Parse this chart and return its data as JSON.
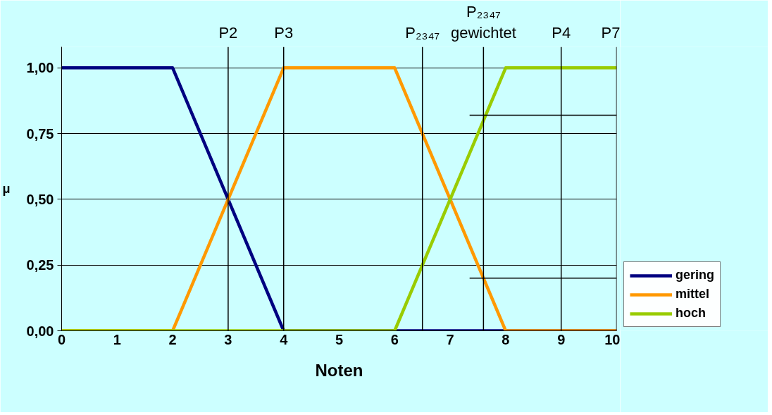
{
  "chart_data": {
    "type": "line",
    "xlabel": "Noten",
    "ylabel": "μ",
    "xlim": [
      0,
      10
    ],
    "xticks": [
      0,
      1,
      2,
      3,
      4,
      5,
      6,
      7,
      8,
      9,
      10
    ],
    "ylim": [
      0,
      1.08
    ],
    "yticks": [
      {
        "value": 0,
        "label": "0,00"
      },
      {
        "value": 0.25,
        "label": "0,25"
      },
      {
        "value": 0.5,
        "label": "0,50"
      },
      {
        "value": 0.75,
        "label": "0,75"
      },
      {
        "value": 1,
        "label": "1,00"
      }
    ],
    "grid": "y",
    "legend": "bottom right",
    "marker": "none",
    "line_style": "solid",
    "series": [
      {
        "name": "gering",
        "color": "#000080",
        "x": [
          0,
          2,
          4,
          10
        ],
        "values": [
          1,
          1,
          0,
          0
        ]
      },
      {
        "name": "mittel",
        "color": "#ff9900",
        "x": [
          0,
          2,
          4,
          6,
          8,
          10
        ],
        "values": [
          0,
          0,
          1,
          1,
          0,
          0
        ]
      },
      {
        "name": "hoch",
        "color": "#99cc00",
        "x": [
          0,
          6,
          8,
          10
        ],
        "values": [
          0,
          0,
          1,
          1
        ]
      },
      {
        "color": "#000000",
        "x": [
          7.35,
          10
        ],
        "values": [
          0.82,
          0.82
        ]
      },
      {
        "color": "#000000",
        "x": [
          7.35,
          10
        ],
        "values": [
          0.2,
          0.2
        ]
      }
    ],
    "ref_lines": [
      {
        "axis": "x",
        "value": 3,
        "label": "P2",
        "color": "#000000"
      },
      {
        "axis": "x",
        "value": 4,
        "label": "P3",
        "color": "#000000"
      },
      {
        "axis": "x",
        "value": 6.5,
        "label": "P₂₃₄₇",
        "color": "#000000"
      },
      {
        "axis": "x",
        "value": 7.6,
        "label": "P₂₃₄₇ gewichtet",
        "color": "#000000"
      },
      {
        "axis": "x",
        "value": 9,
        "label": "P4",
        "color": "#000000"
      },
      {
        "axis": "x",
        "value": 10,
        "label": "P7",
        "color": "#000000"
      }
    ]
  }
}
